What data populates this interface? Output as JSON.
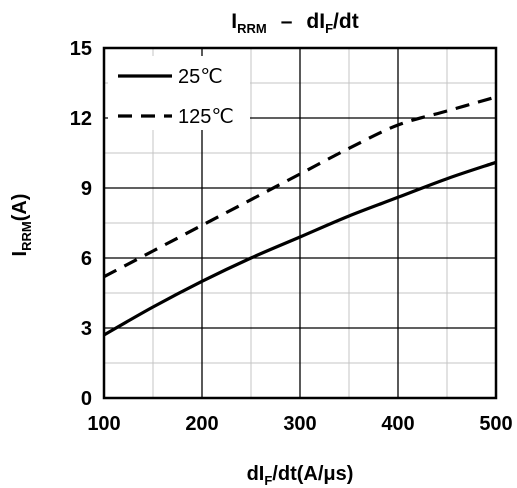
{
  "chart_data": {
    "type": "line",
    "title": {
      "main": "I",
      "sub": "RRM",
      "sep": "–",
      "mid": "dI",
      "sub2": "F",
      "tail": "/dt"
    },
    "xlabel": {
      "pre": "dI",
      "sub": "F",
      "post": "/dt(A/μs)"
    },
    "ylabel": {
      "pre": "I",
      "sub": "RRM",
      "post": "(A)"
    },
    "xlim": [
      100,
      500
    ],
    "ylim": [
      0,
      15
    ],
    "xticks": [
      "100",
      "200",
      "300",
      "400",
      "500"
    ],
    "yticks": [
      "0",
      "3",
      "6",
      "9",
      "12",
      "15"
    ],
    "grid": true,
    "minor_x": [
      150,
      250,
      350,
      450
    ],
    "minor_y": [
      1.5,
      4.5,
      7.5,
      10.5,
      13.5
    ],
    "legend": {
      "position": "top-left"
    },
    "series": [
      {
        "name": "25℃",
        "style": "solid",
        "color": "#000000",
        "x": [
          100,
          150,
          200,
          250,
          300,
          350,
          400,
          450,
          500
        ],
        "y": [
          2.7,
          3.9,
          5.0,
          6.0,
          6.9,
          7.8,
          8.6,
          9.4,
          10.1
        ]
      },
      {
        "name": "125℃",
        "style": "dashed",
        "color": "#000000",
        "x": [
          100,
          150,
          200,
          250,
          300,
          350,
          400,
          450,
          500
        ],
        "y": [
          5.2,
          6.3,
          7.4,
          8.5,
          9.6,
          10.7,
          11.7,
          12.3,
          12.9
        ]
      }
    ]
  }
}
